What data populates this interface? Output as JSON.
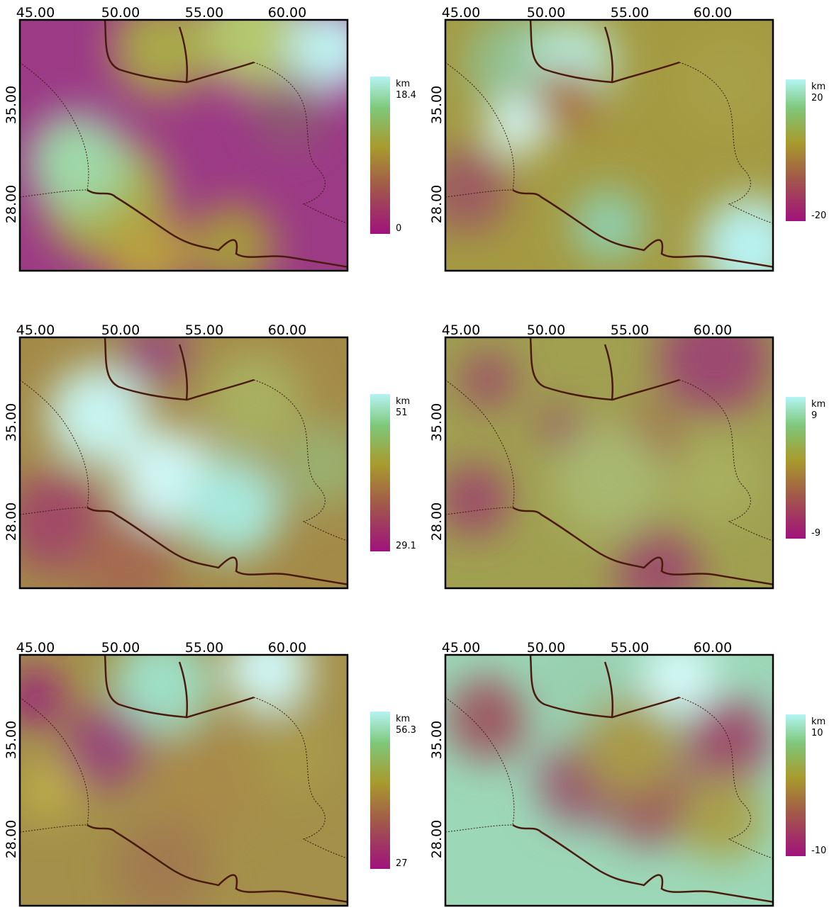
{
  "panels": [
    {
      "x_ticks": [
        "45.00",
        "50.00",
        "55.00",
        "60.00"
      ],
      "y_ticks": [
        "35.00",
        "28.00"
      ],
      "colorbar": {
        "unit": "km",
        "max": "18.4",
        "min": "0"
      }
    },
    {
      "x_ticks": [
        "45.00",
        "50.00",
        "55.00",
        "60.00"
      ],
      "y_ticks": [
        "35.00",
        "28.00"
      ],
      "colorbar": {
        "unit": "km",
        "max": "20",
        "min": "-20"
      }
    },
    {
      "x_ticks": [
        "45.00",
        "50.00",
        "55.00",
        "60.00"
      ],
      "y_ticks": [
        "35.00",
        "28.00"
      ],
      "colorbar": {
        "unit": "km",
        "max": "51",
        "min": "29.1"
      }
    },
    {
      "x_ticks": [
        "45.00",
        "50.00",
        "55.00",
        "60.00"
      ],
      "y_ticks": [
        "35.00",
        "28.00"
      ],
      "colorbar": {
        "unit": "km",
        "max": "9",
        "min": "-9"
      }
    },
    {
      "x_ticks": [
        "45.00",
        "50.00",
        "55.00",
        "60.00"
      ],
      "y_ticks": [
        "35.00",
        "28.00"
      ],
      "colorbar": {
        "unit": "km",
        "max": "56.3",
        "min": "27"
      }
    },
    {
      "x_ticks": [
        "45.00",
        "50.00",
        "55.00",
        "60.00"
      ],
      "y_ticks": [
        "35.00",
        "28.00"
      ],
      "colorbar": {
        "unit": "km",
        "max": "10",
        "min": "-10"
      }
    }
  ]
}
